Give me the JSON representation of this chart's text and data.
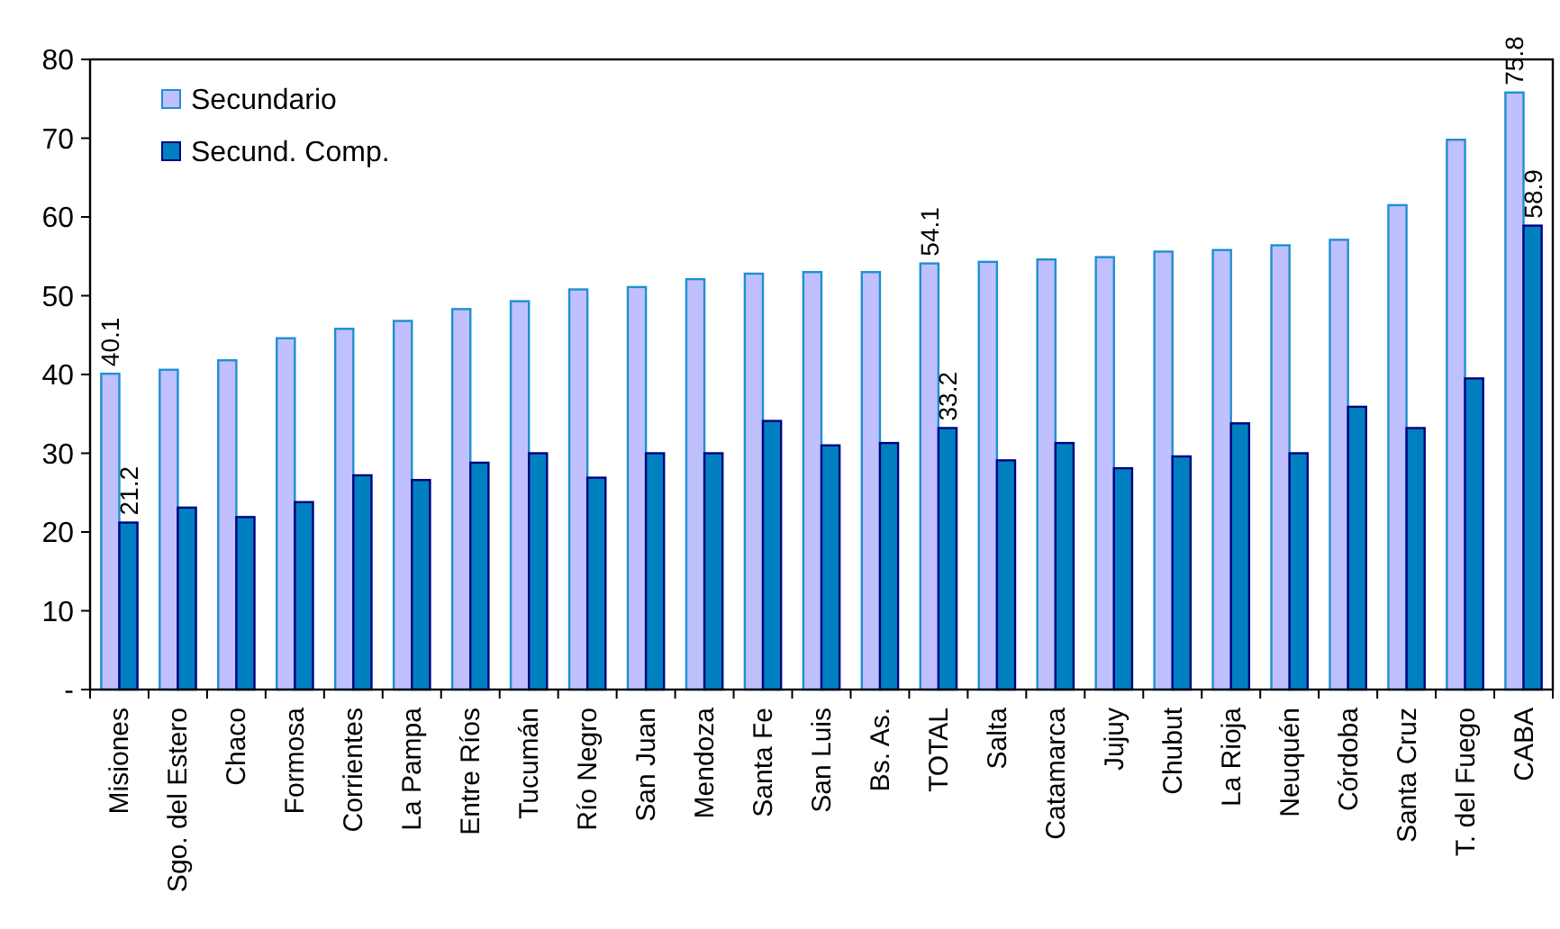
{
  "chart_data": {
    "type": "bar",
    "categories": [
      "Misiones",
      "Sgo. del Estero",
      "Chaco",
      "Formosa",
      "Corrientes",
      "La Pampa",
      "Entre Ríos",
      "Tucumán",
      "Río Negro",
      "San Juan",
      "Mendoza",
      "Santa Fe",
      "San Luis",
      "Bs. As.",
      "TOTAL",
      "Salta",
      "Catamarca",
      "Jujuy",
      "Chubut",
      "La Rioja",
      "Neuquén",
      "Córdoba",
      "Santa Cruz",
      "T. del Fuego",
      "CABA"
    ],
    "series": [
      {
        "name": "Secundario",
        "color": "#c0c0ff",
        "values": [
          40.1,
          40.6,
          41.8,
          44.6,
          45.8,
          46.8,
          48.3,
          49.3,
          50.8,
          51.1,
          52.1,
          52.8,
          53.0,
          53.0,
          54.1,
          54.3,
          54.6,
          54.9,
          55.6,
          55.8,
          56.4,
          57.1,
          61.5,
          69.8,
          75.8
        ],
        "value_labels": [
          "40.1",
          null,
          null,
          null,
          null,
          null,
          null,
          null,
          null,
          null,
          null,
          null,
          null,
          null,
          "54.1",
          null,
          null,
          null,
          null,
          null,
          null,
          null,
          null,
          null,
          "75.8"
        ]
      },
      {
        "name": "Secund. Comp.",
        "color": "#0080c0",
        "values": [
          21.2,
          23.1,
          21.9,
          23.8,
          27.2,
          26.6,
          28.8,
          30.0,
          26.9,
          30.0,
          30.0,
          34.1,
          31.0,
          31.3,
          33.2,
          29.1,
          31.3,
          28.1,
          29.6,
          33.8,
          30.0,
          35.9,
          33.2,
          39.5,
          58.9
        ],
        "value_labels": [
          "21.2",
          null,
          null,
          null,
          null,
          null,
          null,
          null,
          null,
          null,
          null,
          null,
          null,
          null,
          "33.2",
          null,
          null,
          null,
          null,
          null,
          null,
          null,
          null,
          null,
          "58.9"
        ]
      }
    ],
    "ylim": [
      0,
      80
    ],
    "yticks": [
      {
        "value": 0,
        "label": "-"
      },
      10,
      20,
      30,
      40,
      50,
      60,
      70,
      80
    ],
    "grid": false,
    "legend": "top left"
  }
}
